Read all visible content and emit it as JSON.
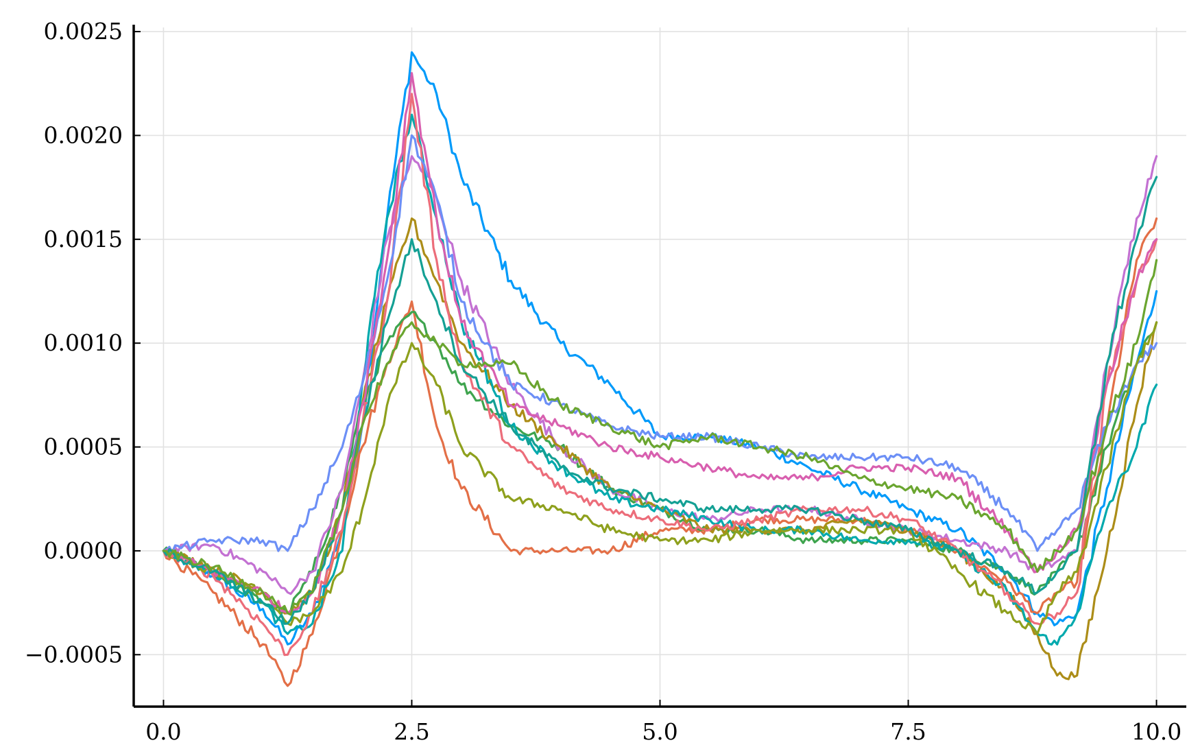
{
  "chart_data": {
    "type": "line",
    "title": "",
    "xlabel": "",
    "ylabel": "",
    "xlim": [
      -0.3,
      10.3
    ],
    "ylim": [
      -0.00075,
      0.00252
    ],
    "grid": true,
    "legend": "none",
    "x_ticks": [
      0.0,
      2.5,
      5.0,
      7.5,
      10.0
    ],
    "x_tick_labels": [
      "0.0",
      "2.5",
      "5.0",
      "7.5",
      "10.0"
    ],
    "y_ticks": [
      -0.0005,
      0.0,
      0.0005,
      0.001,
      0.0015,
      0.002,
      0.0025
    ],
    "y_tick_labels": [
      "−0.0005",
      "0.0000",
      "0.0005",
      "0.0010",
      "0.0015",
      "0.0020",
      "0.0025"
    ],
    "x": [
      0,
      0.5,
      1.0,
      1.25,
      1.5,
      1.8,
      2.0,
      2.25,
      2.5,
      2.75,
      3.0,
      3.5,
      4.0,
      4.5,
      5.0,
      5.5,
      6.0,
      6.5,
      7.0,
      7.5,
      8.0,
      8.5,
      8.8,
      9.0,
      9.2,
      9.5,
      9.8,
      10.0
    ],
    "series": [
      {
        "color": "#009AFA",
        "values": [
          0,
          -0.00012,
          -0.00028,
          -0.00045,
          -0.0003,
          0.0001,
          0.0006,
          0.0016,
          0.0024,
          0.0022,
          0.0018,
          0.0013,
          0.001,
          0.0008,
          0.00055,
          0.00055,
          0.0005,
          0.0004,
          0.0003,
          0.0002,
          0.0001,
          -0.0001,
          -0.0003,
          -0.00035,
          -0.0003,
          0.0003,
          0.0009,
          0.00125
        ]
      },
      {
        "color": "#E36F47",
        "values": [
          0,
          -0.0002,
          -0.00045,
          -0.00065,
          -0.0004,
          0.0001,
          0.0005,
          0.0009,
          0.0012,
          0.0006,
          0.0003,
          0.0,
          0.0,
          0.0,
          0.0001,
          0.0001,
          0.00015,
          0.00015,
          0.00015,
          0.0001,
          0.0,
          -0.00015,
          -0.0003,
          -0.0002,
          -0.00015,
          0.0006,
          0.0014,
          0.0016
        ]
      },
      {
        "color": "#3EA44E",
        "values": [
          0,
          -0.0001,
          -0.00025,
          -0.0003,
          -0.0001,
          0.0003,
          0.0007,
          0.001,
          0.00115,
          0.001,
          0.0008,
          0.0006,
          0.0005,
          0.0003,
          0.0002,
          0.0001,
          0.0001,
          5e-05,
          5e-05,
          5e-05,
          0.0,
          -0.0001,
          -0.0002,
          -0.0001,
          0.0,
          0.0005,
          0.0009,
          0.0011
        ]
      },
      {
        "color": "#C371D2",
        "values": [
          0,
          3e-05,
          -0.0001,
          -0.0002,
          -0.0001,
          0.0003,
          0.0008,
          0.0015,
          0.0019,
          0.0017,
          0.0013,
          0.0008,
          0.0005,
          0.0003,
          0.0002,
          0.00015,
          0.0002,
          0.0002,
          0.00015,
          0.0001,
          5e-05,
          0.0,
          -0.0001,
          -5e-05,
          0.0,
          0.0009,
          0.0016,
          0.0019
        ]
      },
      {
        "color": "#AC8D18",
        "values": [
          0,
          -8e-05,
          -0.0002,
          -0.0003,
          -0.0002,
          0.0002,
          0.0007,
          0.0012,
          0.0016,
          0.0013,
          0.001,
          0.0007,
          0.0005,
          0.0003,
          0.0002,
          0.0001,
          0.0001,
          0.0001,
          0.00015,
          0.0001,
          0.0,
          -0.0002,
          -0.0004,
          -0.0006,
          -0.0006,
          0.0,
          0.0007,
          0.0011
        ]
      },
      {
        "color": "#00A9AD",
        "values": [
          0,
          -0.0001,
          -0.00025,
          -0.0004,
          -0.00035,
          0.0,
          0.0008,
          0.0016,
          0.0021,
          0.0016,
          0.0011,
          0.0006,
          0.0004,
          0.00025,
          0.0002,
          0.00015,
          0.0001,
          0.0001,
          5e-05,
          5e-05,
          0.0,
          -0.0002,
          -0.0004,
          -0.00045,
          -0.0003,
          0.0002,
          0.0005,
          0.0008
        ]
      },
      {
        "color": "#EC6D7A",
        "values": [
          0,
          -0.00012,
          -0.00035,
          -0.0005,
          -0.0003,
          0.0001,
          0.0006,
          0.0012,
          0.0022,
          0.0014,
          0.0009,
          0.0005,
          0.0003,
          0.0002,
          0.00015,
          0.0001,
          0.00015,
          0.0002,
          0.0002,
          0.00015,
          0.0,
          -0.0002,
          -0.00035,
          -0.0003,
          -0.0002,
          0.0008,
          0.0013,
          0.0015
        ]
      },
      {
        "color": "#6C8FF6",
        "values": [
          0,
          5e-05,
          5e-05,
          0.0,
          0.0002,
          0.0005,
          0.0008,
          0.0013,
          0.002,
          0.0017,
          0.0012,
          0.0008,
          0.0007,
          0.0006,
          0.00055,
          0.00055,
          0.0005,
          0.00045,
          0.00045,
          0.00045,
          0.0004,
          0.0002,
          0.0,
          0.0001,
          0.0002,
          0.0006,
          0.0009,
          0.001
        ]
      },
      {
        "color": "#8EA01D",
        "values": [
          0,
          -0.0001,
          -0.0002,
          -0.00035,
          -0.0003,
          -0.0001,
          0.0002,
          0.0007,
          0.001,
          0.0008,
          0.0005,
          0.00025,
          0.0002,
          0.0001,
          5e-05,
          5e-05,
          0.0001,
          0.0001,
          0.0001,
          0.0001,
          -0.0001,
          -0.0003,
          -0.0004,
          -0.0002,
          -0.0001,
          0.0004,
          0.0009,
          0.0011
        ]
      },
      {
        "color": "#D85FAF",
        "values": [
          0,
          -0.0001,
          -0.0002,
          -0.0003,
          -0.0002,
          0.0002,
          0.0007,
          0.0014,
          0.0023,
          0.0016,
          0.0011,
          0.0007,
          0.0006,
          0.0005,
          0.00045,
          0.0004,
          0.00035,
          0.00035,
          0.0004,
          0.0004,
          0.00035,
          0.0001,
          -0.0001,
          0.0,
          0.0001,
          0.0008,
          0.0013,
          0.0015
        ]
      },
      {
        "color": "#14A094",
        "values": [
          0,
          -0.0001,
          -0.00025,
          -0.00035,
          -0.0002,
          0.0002,
          0.0006,
          0.0011,
          0.0015,
          0.0012,
          0.0009,
          0.0006,
          0.0004,
          0.0003,
          0.00025,
          0.0002,
          0.0002,
          0.0002,
          0.00015,
          0.0001,
          0.0,
          -0.0001,
          -0.0002,
          -0.0001,
          0.0,
          0.0009,
          0.0015,
          0.0018
        ]
      },
      {
        "color": "#6AA52F",
        "values": [
          0,
          -8e-05,
          -0.0002,
          -0.0003,
          -0.0002,
          0.0002,
          0.0006,
          0.0009,
          0.0011,
          0.001,
          0.0009,
          0.0009,
          0.0007,
          0.0006,
          0.0005,
          0.00055,
          0.0005,
          0.00045,
          0.00035,
          0.0003,
          0.00025,
          0.0001,
          -0.0001,
          0.0,
          0.0001,
          0.0006,
          0.001,
          0.0014
        ]
      }
    ]
  }
}
